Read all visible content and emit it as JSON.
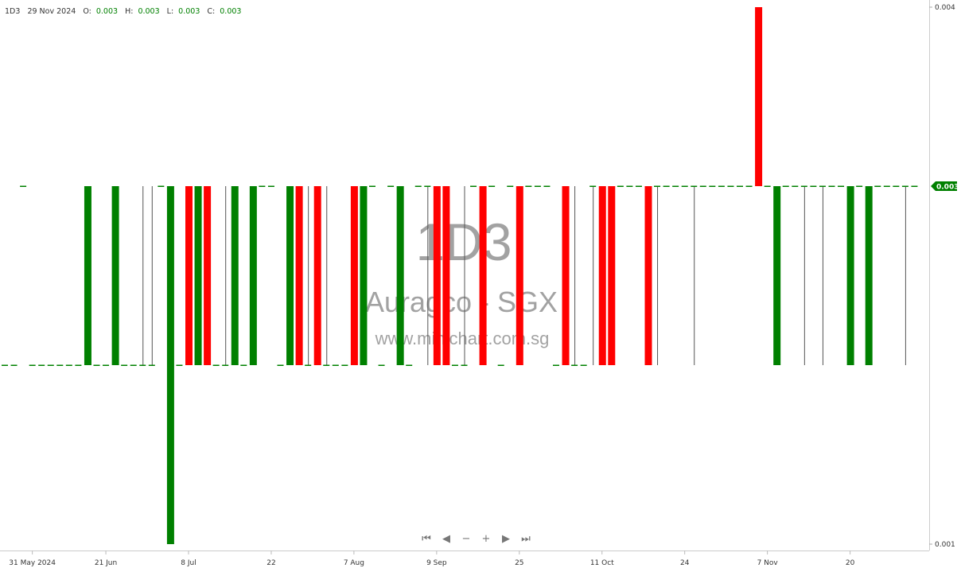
{
  "header": {
    "symbol": "1D3",
    "date": "29 Nov 2024",
    "o_label": "O:",
    "o": "0.003",
    "h_label": "H:",
    "h": "0.003",
    "l_label": "L:",
    "l": "0.003",
    "c_label": "C:",
    "c": "0.003"
  },
  "watermark": {
    "code": "1D3",
    "name": "Auragco - SGX",
    "site": "www.minichart.com.sg"
  },
  "navigation": {
    "first": "⏮",
    "prev": "◀",
    "zoom_out": "−",
    "zoom_in": "+",
    "next": "▶",
    "last": "⏭"
  },
  "colors": {
    "up": "#008000",
    "down": "#ff0000",
    "doji": "#555555"
  },
  "chart_data": {
    "type": "candlestick",
    "ylim": [
      0.001,
      0.004
    ],
    "y_ticks": [
      "0.004",
      "0.001"
    ],
    "last_price": "0.003",
    "x_ticks": [
      {
        "index": 3,
        "label": "31 May 2024"
      },
      {
        "index": 11,
        "label": "21 Jun"
      },
      {
        "index": 20,
        "label": "8 Jul"
      },
      {
        "index": 29,
        "label": "22"
      },
      {
        "index": 38,
        "label": "7 Aug"
      },
      {
        "index": 47,
        "label": "9 Sep"
      },
      {
        "index": 56,
        "label": "25"
      },
      {
        "index": 65,
        "label": "11 Oct"
      },
      {
        "index": 74,
        "label": "24"
      },
      {
        "index": 83,
        "label": "7 Nov"
      },
      {
        "index": 92,
        "label": "20"
      }
    ],
    "ohlc": [
      [
        0.002,
        0.002,
        0.002,
        0.002
      ],
      [
        0.002,
        0.002,
        0.002,
        0.002
      ],
      [
        0.003,
        0.003,
        0.003,
        0.003
      ],
      [
        0.002,
        0.002,
        0.002,
        0.002
      ],
      [
        0.002,
        0.002,
        0.002,
        0.002
      ],
      [
        0.002,
        0.002,
        0.002,
        0.002
      ],
      [
        0.002,
        0.002,
        0.002,
        0.002
      ],
      [
        0.002,
        0.002,
        0.002,
        0.002
      ],
      [
        0.002,
        0.002,
        0.002,
        0.002
      ],
      [
        0.002,
        0.003,
        0.002,
        0.003
      ],
      [
        0.002,
        0.002,
        0.002,
        0.002
      ],
      [
        0.002,
        0.002,
        0.002,
        0.002
      ],
      [
        0.002,
        0.003,
        0.002,
        0.003
      ],
      [
        0.002,
        0.002,
        0.002,
        0.002
      ],
      [
        0.002,
        0.002,
        0.002,
        0.002
      ],
      [
        0.002,
        0.003,
        0.002,
        0.002
      ],
      [
        0.002,
        0.003,
        0.002,
        0.002
      ],
      [
        0.003,
        0.003,
        0.003,
        0.003
      ],
      [
        0.001,
        0.003,
        0.001,
        0.003
      ],
      [
        0.002,
        0.002,
        0.002,
        0.002
      ],
      [
        0.003,
        0.003,
        0.002,
        0.002
      ],
      [
        0.002,
        0.003,
        0.002,
        0.003
      ],
      [
        0.003,
        0.003,
        0.002,
        0.002
      ],
      [
        0.002,
        0.002,
        0.002,
        0.002
      ],
      [
        0.002,
        0.003,
        0.002,
        0.002
      ],
      [
        0.002,
        0.003,
        0.002,
        0.003
      ],
      [
        0.002,
        0.002,
        0.002,
        0.002
      ],
      [
        0.002,
        0.003,
        0.002,
        0.003
      ],
      [
        0.003,
        0.003,
        0.003,
        0.003
      ],
      [
        0.003,
        0.003,
        0.003,
        0.003
      ],
      [
        0.002,
        0.002,
        0.002,
        0.002
      ],
      [
        0.002,
        0.003,
        0.002,
        0.003
      ],
      [
        0.003,
        0.003,
        0.002,
        0.002
      ],
      [
        0.002,
        0.003,
        0.002,
        0.002
      ],
      [
        0.003,
        0.003,
        0.002,
        0.002
      ],
      [
        0.002,
        0.003,
        0.002,
        0.002
      ],
      [
        0.002,
        0.002,
        0.002,
        0.002
      ],
      [
        0.002,
        0.002,
        0.002,
        0.002
      ],
      [
        0.003,
        0.003,
        0.002,
        0.002
      ],
      [
        0.002,
        0.003,
        0.002,
        0.003
      ],
      [
        0.003,
        0.003,
        0.003,
        0.003
      ],
      [
        0.002,
        0.002,
        0.002,
        0.002
      ],
      [
        0.003,
        0.003,
        0.003,
        0.003
      ],
      [
        0.002,
        0.003,
        0.002,
        0.003
      ],
      [
        0.002,
        0.002,
        0.002,
        0.002
      ],
      [
        0.003,
        0.003,
        0.003,
        0.003
      ],
      [
        0.003,
        0.003,
        0.002,
        0.003
      ],
      [
        0.003,
        0.003,
        0.002,
        0.002
      ],
      [
        0.003,
        0.003,
        0.002,
        0.002
      ],
      [
        0.002,
        0.002,
        0.002,
        0.002
      ],
      [
        0.002,
        0.003,
        0.002,
        0.002
      ],
      [
        0.003,
        0.003,
        0.003,
        0.003
      ],
      [
        0.003,
        0.003,
        0.002,
        0.002
      ],
      [
        0.003,
        0.003,
        0.003,
        0.003
      ],
      [
        0.002,
        0.002,
        0.002,
        0.002
      ],
      [
        0.003,
        0.003,
        0.003,
        0.003
      ],
      [
        0.003,
        0.003,
        0.002,
        0.002
      ],
      [
        0.003,
        0.003,
        0.003,
        0.003
      ],
      [
        0.003,
        0.003,
        0.003,
        0.003
      ],
      [
        0.003,
        0.003,
        0.003,
        0.003
      ],
      [
        0.002,
        0.002,
        0.002,
        0.002
      ],
      [
        0.003,
        0.003,
        0.002,
        0.002
      ],
      [
        0.002,
        0.003,
        0.002,
        0.002
      ],
      [
        0.002,
        0.002,
        0.002,
        0.002
      ],
      [
        0.003,
        0.003,
        0.002,
        0.003
      ],
      [
        0.003,
        0.003,
        0.002,
        0.002
      ],
      [
        0.003,
        0.003,
        0.002,
        0.002
      ],
      [
        0.003,
        0.003,
        0.003,
        0.003
      ],
      [
        0.003,
        0.003,
        0.003,
        0.003
      ],
      [
        0.003,
        0.003,
        0.003,
        0.003
      ],
      [
        0.003,
        0.003,
        0.002,
        0.002
      ],
      [
        0.003,
        0.003,
        0.002,
        0.003
      ],
      [
        0.003,
        0.003,
        0.003,
        0.003
      ],
      [
        0.003,
        0.003,
        0.003,
        0.003
      ],
      [
        0.003,
        0.003,
        0.003,
        0.003
      ],
      [
        0.003,
        0.003,
        0.002,
        0.003
      ],
      [
        0.003,
        0.003,
        0.003,
        0.003
      ],
      [
        0.003,
        0.003,
        0.003,
        0.003
      ],
      [
        0.003,
        0.003,
        0.003,
        0.003
      ],
      [
        0.003,
        0.003,
        0.003,
        0.003
      ],
      [
        0.003,
        0.003,
        0.003,
        0.003
      ],
      [
        0.003,
        0.003,
        0.003,
        0.003
      ],
      [
        0.004,
        0.004,
        0.003,
        0.003
      ],
      [
        0.003,
        0.003,
        0.003,
        0.003
      ],
      [
        0.002,
        0.003,
        0.002,
        0.003
      ],
      [
        0.003,
        0.003,
        0.003,
        0.003
      ],
      [
        0.003,
        0.003,
        0.003,
        0.003
      ],
      [
        0.003,
        0.003,
        0.002,
        0.003
      ],
      [
        0.003,
        0.003,
        0.003,
        0.003
      ],
      [
        0.003,
        0.003,
        0.002,
        0.003
      ],
      [
        0.003,
        0.003,
        0.003,
        0.003
      ],
      [
        0.003,
        0.003,
        0.003,
        0.003
      ],
      [
        0.002,
        0.003,
        0.002,
        0.003
      ],
      [
        0.003,
        0.003,
        0.003,
        0.003
      ],
      [
        0.002,
        0.003,
        0.002,
        0.003
      ],
      [
        0.003,
        0.003,
        0.003,
        0.003
      ],
      [
        0.003,
        0.003,
        0.003,
        0.003
      ],
      [
        0.003,
        0.003,
        0.003,
        0.003
      ],
      [
        0.003,
        0.003,
        0.002,
        0.003
      ],
      [
        0.003,
        0.003,
        0.003,
        0.003
      ]
    ]
  }
}
